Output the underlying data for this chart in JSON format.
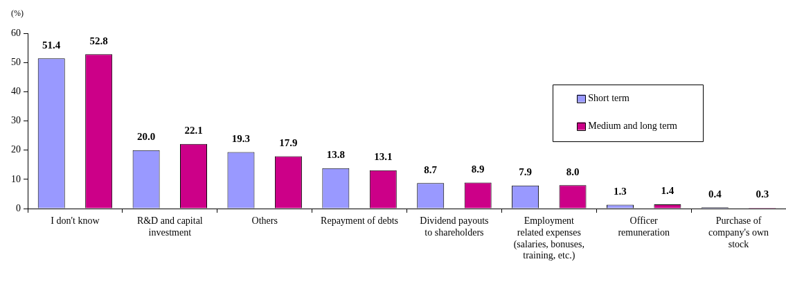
{
  "chart_data": {
    "type": "bar",
    "ylabel": "(%)",
    "categories": [
      "I don't know",
      "R&D and capital investment",
      "Others",
      "Repayment of debts",
      "Dividend payouts to shareholders",
      "Employment related expenses (salaries, bonuses, training, etc.)",
      "Officer remuneration",
      "Purchase of company's own stock"
    ],
    "series": [
      {
        "name": "Short term",
        "color": "#9999ff",
        "values": [
          51.4,
          20.0,
          19.3,
          13.8,
          8.7,
          7.9,
          1.3,
          0.4
        ],
        "value_labels": [
          "51.4",
          "20.0",
          "19.3",
          "13.8",
          "8.7",
          "7.9",
          "1.3",
          "0.4"
        ]
      },
      {
        "name": "Medium and long term",
        "color": "#cc0088",
        "values": [
          52.8,
          22.1,
          17.9,
          13.1,
          8.9,
          8.0,
          1.4,
          0.3
        ],
        "value_labels": [
          "52.8",
          "22.1",
          "17.9",
          "13.1",
          "8.9",
          "8.0",
          "1.4",
          "0.3"
        ]
      }
    ],
    "ylim": [
      0,
      60
    ],
    "yticks": [
      0,
      10,
      20,
      30,
      40,
      50,
      60
    ],
    "grid": false,
    "legend": "right"
  }
}
